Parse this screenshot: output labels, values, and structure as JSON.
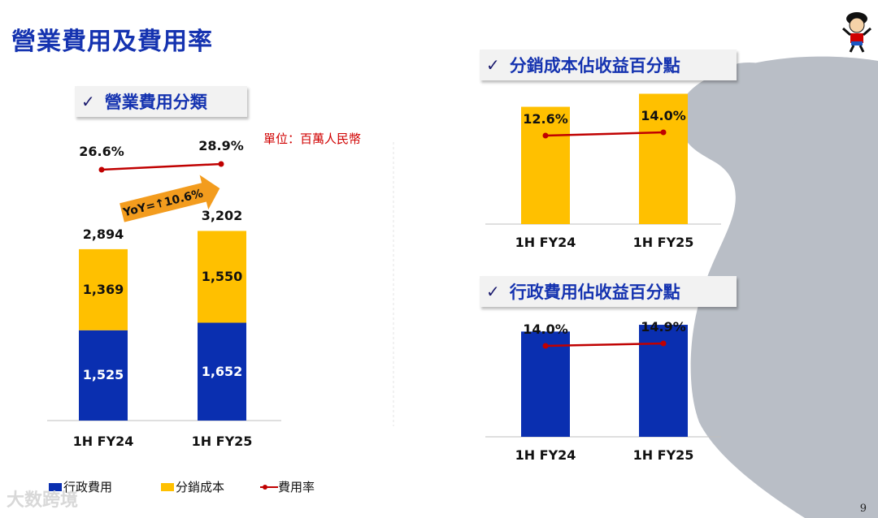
{
  "page": {
    "title": "營業費用及費用率",
    "page_number": "9",
    "watermark": "大数跨境"
  },
  "colors": {
    "admin": "#0a2fb0",
    "distribution": "#ffc000",
    "rate_line": "#c00000",
    "title": "#1533b0"
  },
  "left_panel": {
    "header": "營業費用分類",
    "check": "✓",
    "unit": "單位：百萬人民幣",
    "yoy_label": "YoY=↑10.6%"
  },
  "right_top": {
    "header": "分銷成本佔收益百分點",
    "check": "✓"
  },
  "right_bottom": {
    "header": "行政費用佔收益百分點",
    "check": "✓"
  },
  "legend": {
    "admin": "行政費用",
    "distribution": "分銷成本",
    "rate": "費用率"
  },
  "chart_data": [
    {
      "type": "bar",
      "stacked": true,
      "title": "營業費用分類",
      "categories": [
        "1H FY24",
        "1H FY25"
      ],
      "series": [
        {
          "name": "行政費用",
          "values": [
            1525,
            1652
          ]
        },
        {
          "name": "分銷成本",
          "values": [
            1369,
            1550
          ]
        }
      ],
      "totals": [
        2894,
        3202
      ],
      "total_labels": [
        "2,894",
        "3,202"
      ],
      "value_labels": {
        "行政費用": [
          "1,525",
          "1,652"
        ],
        "分銷成本": [
          "1,369",
          "1,550"
        ]
      },
      "line": {
        "name": "費用率",
        "values": [
          26.6,
          28.9
        ],
        "labels": [
          "26.6%",
          "28.9%"
        ]
      },
      "ylim": [
        0,
        3400
      ],
      "yoy": "YoY=↑10.6%"
    },
    {
      "type": "bar",
      "title": "分銷成本佔收益百分點",
      "categories": [
        "1H FY24",
        "1H FY25"
      ],
      "values": [
        12.6,
        14.0
      ],
      "labels": [
        "12.6%",
        "14.0%"
      ],
      "ylim": [
        0,
        15.7
      ]
    },
    {
      "type": "bar",
      "title": "行政費用佔收益百分點",
      "categories": [
        "1H FY24",
        "1H FY25"
      ],
      "values": [
        14.0,
        14.9
      ],
      "labels": [
        "14.0%",
        "14.9%"
      ],
      "ylim": [
        0,
        16.2
      ]
    }
  ]
}
